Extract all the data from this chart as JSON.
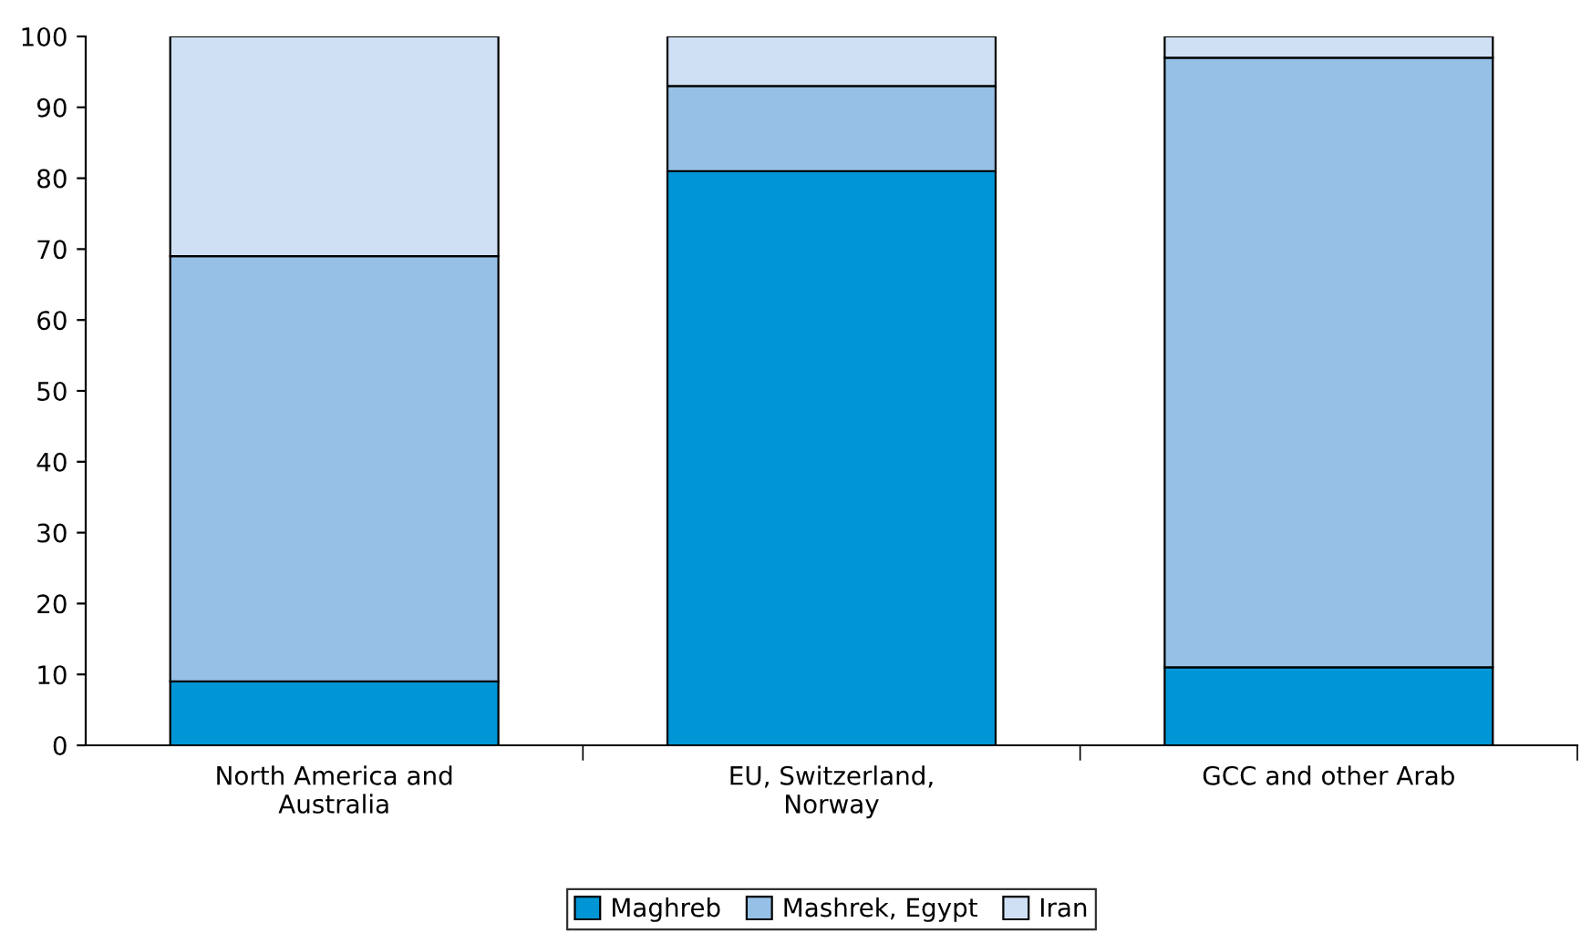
{
  "chart_data": {
    "type": "bar",
    "stacked": true,
    "categories": [
      "North America and\nAustralia",
      "EU, Switzerland,\nNorway",
      "GCC and other Arab"
    ],
    "series": [
      {
        "name": "Maghreb",
        "color": "#0096d6",
        "values": [
          9,
          81,
          11
        ]
      },
      {
        "name": "Mashrek, Egypt",
        "color": "#96c0e6",
        "values": [
          60,
          12,
          86
        ]
      },
      {
        "name": "Iran",
        "color": "#d0e0f4",
        "values": [
          31,
          7,
          3
        ]
      }
    ],
    "ylim": [
      0,
      100
    ],
    "yticks": [
      0,
      10,
      20,
      30,
      40,
      50,
      60,
      70,
      80,
      90,
      100
    ],
    "grid": false,
    "legend": "bottom"
  }
}
